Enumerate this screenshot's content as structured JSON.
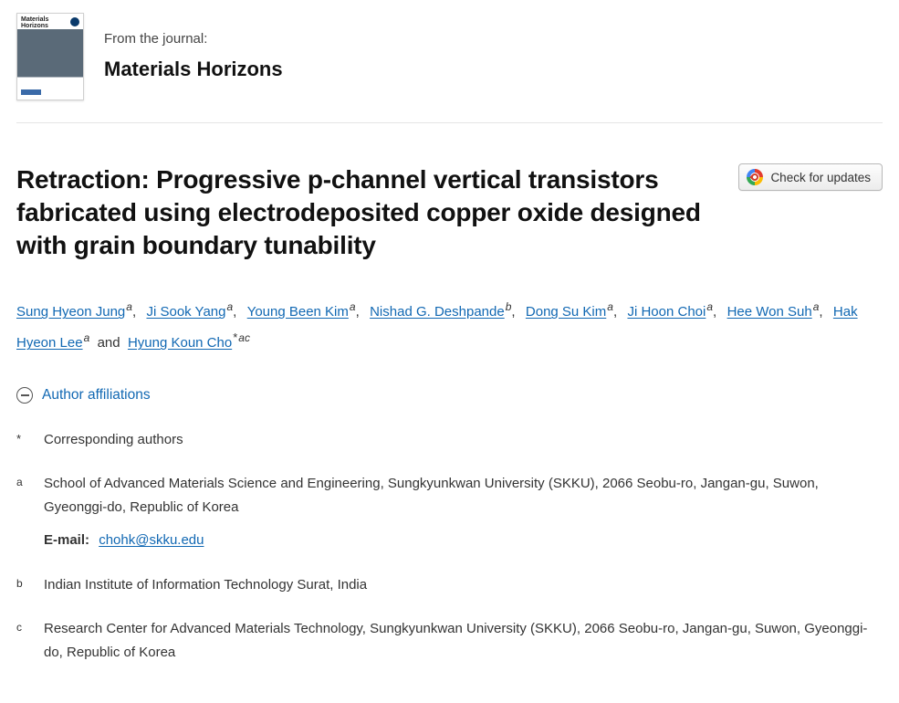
{
  "journal": {
    "from_label": "From the journal:",
    "name": "Materials Horizons"
  },
  "check_updates_label": "Check for updates",
  "article": {
    "title": "Retraction: Progressive p-channel vertical transistors fabricated using electrodeposited copper oxide designed with grain boundary tunability"
  },
  "authors": [
    {
      "name": "Sung Hyeon Jung",
      "affil": "a",
      "corresponding": false,
      "last": false
    },
    {
      "name": "Ji Sook Yang",
      "affil": "a",
      "corresponding": false,
      "last": false
    },
    {
      "name": "Young Been Kim",
      "affil": "a",
      "corresponding": false,
      "last": false
    },
    {
      "name": "Nishad G. Deshpande",
      "affil": "b",
      "corresponding": false,
      "last": false
    },
    {
      "name": "Dong Su Kim",
      "affil": "a",
      "corresponding": false,
      "last": false
    },
    {
      "name": "Ji Hoon Choi",
      "affil": "a",
      "corresponding": false,
      "last": false
    },
    {
      "name": "Hee Won Suh",
      "affil": "a",
      "corresponding": false,
      "last": false
    },
    {
      "name": "Hak Hyeon Lee",
      "affil": "a",
      "corresponding": false,
      "last": true
    },
    {
      "name": "Hyung Koun Cho",
      "affil": "ac",
      "corresponding": true,
      "last": false
    }
  ],
  "conjunction": "and",
  "affiliations_toggle": "Author affiliations",
  "affiliations": {
    "corresponding_label": "Corresponding authors",
    "email_label": "E-mail:",
    "items": [
      {
        "key": "a",
        "text": "School of Advanced Materials Science and Engineering, Sungkyunkwan University (SKKU), 2066 Seobu-ro, Jangan-gu, Suwon, Gyeonggi-do, Republic of Korea",
        "email": "chohk@skku.edu"
      },
      {
        "key": "b",
        "text": "Indian Institute of Information Technology Surat, India",
        "email": null
      },
      {
        "key": "c",
        "text": "Research Center for Advanced Materials Technology, Sungkyunkwan University (SKKU), 2066 Seobu-ro, Jangan-gu, Suwon, Gyeonggi-do, Republic of Korea",
        "email": null
      }
    ]
  },
  "colors": {
    "link": "#1168b3",
    "text": "#333333",
    "title": "#111111",
    "border": "#e5e5e5"
  }
}
